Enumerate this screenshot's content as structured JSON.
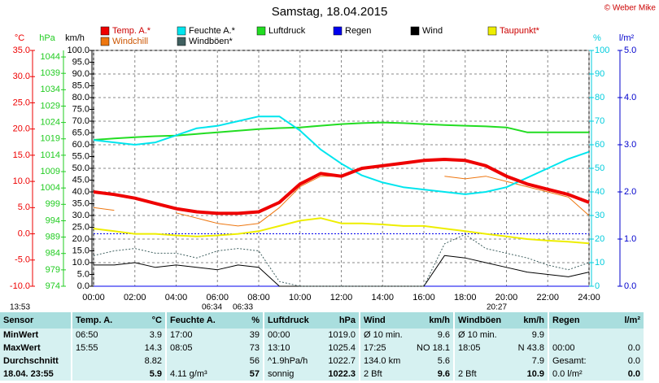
{
  "chart_data": {
    "type": "line",
    "title": "Samstag, 18.04.2015",
    "copyright": "© Weber Mike",
    "x": [
      0,
      1,
      2,
      3,
      4,
      5,
      6,
      7,
      8,
      9,
      10,
      11,
      12,
      13,
      14,
      15,
      16,
      17,
      18,
      19,
      20,
      21,
      22,
      23,
      24
    ],
    "xlim": [
      0,
      24
    ],
    "xticks": [
      {
        "value": 0,
        "label": "00:00"
      },
      {
        "value": 2,
        "label": "02:00"
      },
      {
        "value": 4,
        "label": "04:00"
      },
      {
        "value": 6,
        "label": "06:00"
      },
      {
        "value": 8,
        "label": "08:00"
      },
      {
        "value": 10,
        "label": "10:00"
      },
      {
        "value": 12,
        "label": "12:00"
      },
      {
        "value": 14,
        "label": "14:00"
      },
      {
        "value": 16,
        "label": "16:00"
      },
      {
        "value": 18,
        "label": "18:00"
      },
      {
        "value": 20,
        "label": "20:00"
      },
      {
        "value": 22,
        "label": "22:00"
      },
      {
        "value": 24,
        "label": "24:00"
      }
    ],
    "grid": true,
    "axes": [
      {
        "label": "°C",
        "color": "#ee0000",
        "lim": [
          -10,
          35
        ],
        "ticks": [
          {
            "value": 35,
            "label": "35.0"
          },
          {
            "value": 30,
            "label": "30.0"
          },
          {
            "value": 25,
            "label": "25.0"
          },
          {
            "value": 20,
            "label": "20.0"
          },
          {
            "value": 15,
            "label": "15.0"
          },
          {
            "value": 10,
            "label": "10.0"
          },
          {
            "value": 5,
            "label": "5.0"
          },
          {
            "value": 0,
            "label": "0.0"
          },
          {
            "value": -5,
            "label": "-5.0"
          },
          {
            "value": -10,
            "label": "-10.0"
          }
        ]
      },
      {
        "label": "hPa",
        "color": "#22cc22",
        "lim": [
          974,
          1046
        ],
        "ticks": [
          1044,
          1039,
          1034,
          1029,
          1024,
          1019,
          1014,
          1009,
          1004,
          999,
          994,
          989,
          984,
          979,
          974
        ]
      },
      {
        "label": "km/h",
        "color": "#000000",
        "lim": [
          0,
          100
        ],
        "ticks": [
          {
            "value": 100,
            "label": "100.0"
          },
          {
            "value": 95,
            "label": "95.0"
          },
          {
            "value": 90,
            "label": "90.0"
          },
          {
            "value": 85,
            "label": "85.0"
          },
          {
            "value": 80,
            "label": "80.0"
          },
          {
            "value": 75,
            "label": "75.0"
          },
          {
            "value": 70,
            "label": "70.0"
          },
          {
            "value": 65,
            "label": "65.0"
          },
          {
            "value": 60,
            "label": "60.0"
          },
          {
            "value": 55,
            "label": "55.0"
          },
          {
            "value": 50,
            "label": "50.0"
          },
          {
            "value": 45,
            "label": "45.0"
          },
          {
            "value": 40,
            "label": "40.0"
          },
          {
            "value": 35,
            "label": "35.0"
          },
          {
            "value": 30,
            "label": "30.0"
          },
          {
            "value": 25,
            "label": "25.0"
          },
          {
            "value": 20,
            "label": "20.0"
          },
          {
            "value": 15,
            "label": "15.0"
          },
          {
            "value": 10,
            "label": "10.0"
          },
          {
            "value": 5,
            "label": "5.0"
          },
          {
            "value": 0,
            "label": "0.0"
          }
        ]
      },
      {
        "label": "%",
        "color": "#00ccdd",
        "lim": [
          0,
          100
        ],
        "ticks": [
          100,
          90,
          80,
          70,
          60,
          50,
          40,
          30,
          20,
          10,
          0
        ]
      },
      {
        "label": "l/m²",
        "color": "#0000cc",
        "lim": [
          0,
          5
        ],
        "ticks": [
          {
            "value": 5,
            "label": "5.0"
          },
          {
            "value": 4,
            "label": "4.0"
          },
          {
            "value": 3,
            "label": "3.0"
          },
          {
            "value": 2,
            "label": "2.0"
          },
          {
            "value": 1,
            "label": "1.0"
          },
          {
            "value": 0,
            "label": "0.0"
          }
        ]
      }
    ],
    "series": [
      {
        "name": "Temp. A.*",
        "color": "#ee0000",
        "axis": 0,
        "width": 4,
        "values": [
          8.0,
          7.5,
          6.8,
          5.8,
          4.8,
          4.2,
          3.9,
          3.9,
          4.2,
          6.0,
          9.5,
          11.5,
          11.0,
          12.5,
          13.0,
          13.5,
          14.0,
          14.2,
          14.0,
          13.0,
          11.0,
          9.5,
          8.5,
          7.5,
          6.0
        ]
      },
      {
        "name": "Feuchte A.*",
        "color": "#00e5ee",
        "axis": 3,
        "width": 2,
        "values": [
          62,
          61,
          60,
          61,
          64,
          67,
          68,
          70,
          72,
          72,
          66,
          58,
          52,
          47,
          44,
          42,
          41,
          40,
          39,
          40,
          42,
          46,
          50,
          54,
          57
        ]
      },
      {
        "name": "Luftdruck",
        "color": "#22dd22",
        "axis": 1,
        "width": 2,
        "values": [
          1018.7,
          1019.1,
          1019.5,
          1019.8,
          1020.0,
          1020.5,
          1021.0,
          1021.5,
          1022.0,
          1022.3,
          1022.5,
          1023.0,
          1023.5,
          1023.8,
          1024.0,
          1023.8,
          1023.5,
          1023.2,
          1023.0,
          1022.8,
          1022.5,
          1021.0,
          1021.0,
          1021.0,
          1021.0
        ]
      },
      {
        "name": "Regen",
        "color": "#0000ee",
        "axis": 4,
        "width": 1,
        "values": [
          0,
          0,
          0,
          0,
          0,
          0,
          0,
          0,
          0,
          0,
          0,
          0,
          0,
          0,
          0,
          0,
          0,
          0,
          0,
          0,
          0,
          0,
          0,
          0,
          0
        ]
      },
      {
        "name": "Wind",
        "color": "#000000",
        "axis": 2,
        "width": 1,
        "values": [
          9,
          9,
          10,
          8,
          9,
          8,
          7,
          9,
          8,
          0,
          0,
          0,
          0,
          0,
          0,
          0,
          0,
          13,
          12,
          10,
          8,
          6,
          5,
          4,
          6
        ]
      },
      {
        "name": "Taupunkt*",
        "color": "#eeee00",
        "axis": 0,
        "width": 2,
        "values": [
          1.0,
          0.5,
          0,
          0,
          -0.3,
          -0.5,
          -0.3,
          0,
          0.5,
          1.5,
          2.5,
          3.0,
          2.0,
          2.0,
          1.8,
          1.5,
          1.5,
          1.0,
          0.5,
          0,
          -0.5,
          -1.0,
          -1.3,
          -1.5,
          -1.8
        ]
      },
      {
        "name": "Windchill",
        "color": "#ee7711",
        "axis": 0,
        "width": 1,
        "values": [
          5.0,
          4.5,
          null,
          null,
          4.0,
          3.0,
          2.0,
          1.5,
          2.0,
          5.0,
          9.0,
          11.0,
          11.0,
          null,
          null,
          null,
          null,
          11.0,
          10.5,
          11.0,
          10.0,
          9.0,
          8.0,
          7.0,
          3.5
        ]
      },
      {
        "name": "Windböen*",
        "color": "#406060",
        "axis": 2,
        "width": 1,
        "dashed": true,
        "values": [
          13,
          15,
          16,
          14,
          14,
          12,
          15,
          16,
          15,
          2,
          0,
          0,
          0,
          0,
          0,
          0,
          0,
          18,
          22,
          16,
          14,
          12,
          9,
          7,
          10
        ]
      }
    ],
    "annotations": [
      "13:53",
      "06:34",
      "06:33",
      "20:27"
    ]
  },
  "table": {
    "header": [
      "Sensor",
      "Temp. A.",
      "°C",
      "Feuchte A.",
      "%",
      "Luftdruck",
      "hPa",
      "Wind",
      "km/h",
      "Windböen",
      "km/h",
      "Regen",
      "l/m²"
    ],
    "rows": [
      [
        "MinWert",
        "06:50",
        "3.9",
        "17:00",
        "39",
        "00:00",
        "1019.0",
        "Ø 10 min.",
        "9.6",
        "Ø 10 min.",
        "9.9",
        null,
        null
      ],
      [
        "MaxWert",
        "15:55",
        "14.3",
        "08:05",
        "73",
        "13:10",
        "1025.4",
        "17:25",
        "NO 18.1",
        "18:05",
        "N 43.8",
        "00:00",
        "0.0"
      ],
      [
        "Durchschnitt",
        null,
        "8.82",
        null,
        "56",
        "^1.9hPa/h",
        "1022.7",
        "134.0 km",
        "5.6",
        null,
        "7.9",
        "Gesamt:",
        "0.0"
      ],
      [
        "18.04. 23:55",
        null,
        "5.9",
        "4.11 g/m³",
        "57",
        "sonnig",
        "1022.3",
        "2 Bft",
        "9.6",
        "2 Bft",
        "10.9",
        "0.0 l/m²",
        "0.0"
      ]
    ]
  }
}
